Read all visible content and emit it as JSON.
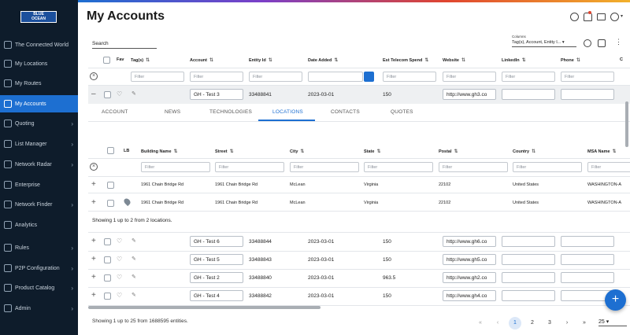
{
  "brand": {
    "logo_text": "BLUE OCEAN"
  },
  "sidebar": {
    "items": [
      {
        "label": "The Connected World",
        "chevron": false,
        "active": false
      },
      {
        "label": "My Locations",
        "chevron": false,
        "active": false
      },
      {
        "label": "My Routes",
        "chevron": false,
        "active": false
      },
      {
        "label": "My Accounts",
        "chevron": false,
        "active": true
      },
      {
        "label": "Quoting",
        "chevron": true,
        "active": false
      },
      {
        "label": "List Manager",
        "chevron": true,
        "active": false
      },
      {
        "label": "Network Radar",
        "chevron": true,
        "active": false
      },
      {
        "label": "Enterprise",
        "chevron": false,
        "active": false
      },
      {
        "label": "Network Finder",
        "chevron": true,
        "active": false
      },
      {
        "label": "Analytics",
        "chevron": false,
        "active": false
      },
      {
        "label": "Rules",
        "chevron": true,
        "active": false
      },
      {
        "label": "P2P Configuration",
        "chevron": true,
        "active": false
      },
      {
        "label": "Product Catalog",
        "chevron": true,
        "active": false
      },
      {
        "label": "Admin",
        "chevron": true,
        "active": false
      }
    ]
  },
  "header": {
    "title": "My Accounts"
  },
  "search": {
    "label": "Search"
  },
  "columns": {
    "label": "Columns",
    "value": "Tag(s), Account, Entity I..."
  },
  "table": {
    "headers": [
      "Fav",
      "Tag(s)",
      "Account",
      "Entity Id",
      "Date Added",
      "Est Telecom Spend",
      "Website",
      "LinkedIn",
      "Phone",
      "C"
    ],
    "sort_glyph": "⇅",
    "filter_placeholder": "Filter",
    "expanded_row": {
      "account": "GH - Test 3",
      "entity_id": "33488841",
      "date_added": "2023-03-01",
      "spend": "150",
      "website": "http://www.gh3.co"
    },
    "rows": [
      {
        "account": "GH - Test 6",
        "entity_id": "33488844",
        "date_added": "2023-03-01",
        "spend": "150",
        "website": "http://www.gh6.co"
      },
      {
        "account": "GH - Test 5",
        "entity_id": "33488843",
        "date_added": "2023-03-01",
        "spend": "150",
        "website": "http://www.gh5.co"
      },
      {
        "account": "GH - Test 2",
        "entity_id": "33488840",
        "date_added": "2023-03-01",
        "spend": "963.5",
        "website": "http://www.gh2.co"
      },
      {
        "account": "GH - Test 4",
        "entity_id": "33488842",
        "date_added": "2023-03-01",
        "spend": "150",
        "website": "http://www.gh4.co"
      }
    ]
  },
  "subtabs": [
    "ACCOUNT",
    "NEWS",
    "TECHNOLOGIES",
    "LOCATIONS",
    "CONTACTS",
    "QUOTES"
  ],
  "locations": {
    "headers": [
      "LB",
      "Building Name",
      "Street",
      "City",
      "State",
      "Postal",
      "Country",
      "MSA Name"
    ],
    "rows": [
      {
        "building": "1961 Chain Bridge Rd",
        "street": "1961 Chain Bridge Rd",
        "city": "McLean",
        "state": "Virginia",
        "postal": "22102",
        "country": "United States",
        "msa": "WASHINGTON-A"
      },
      {
        "building": "1961 Chain Bridge Rd",
        "street": "1961 Chain Bridge Rd",
        "city": "McLean",
        "state": "Virginia",
        "postal": "22102",
        "country": "United States",
        "msa": "WASHINGTON-A"
      }
    ],
    "summary": "Showing 1 up to 2 from 2 locations."
  },
  "footer": {
    "summary": "Showing 1 up to 25 from 1688595 entities.",
    "pages": [
      "1",
      "2",
      "3"
    ],
    "first": "«",
    "prev": "‹",
    "next": "›",
    "last": "»",
    "page_size": "25"
  },
  "icons": {
    "help": "help-icon",
    "bell": "bell-icon",
    "mail": "mail-icon",
    "user": "user-icon",
    "more": "more-icon"
  },
  "colors": {
    "accent": "#1d6fd1",
    "sidebar_bg": "#0e1c2b"
  }
}
